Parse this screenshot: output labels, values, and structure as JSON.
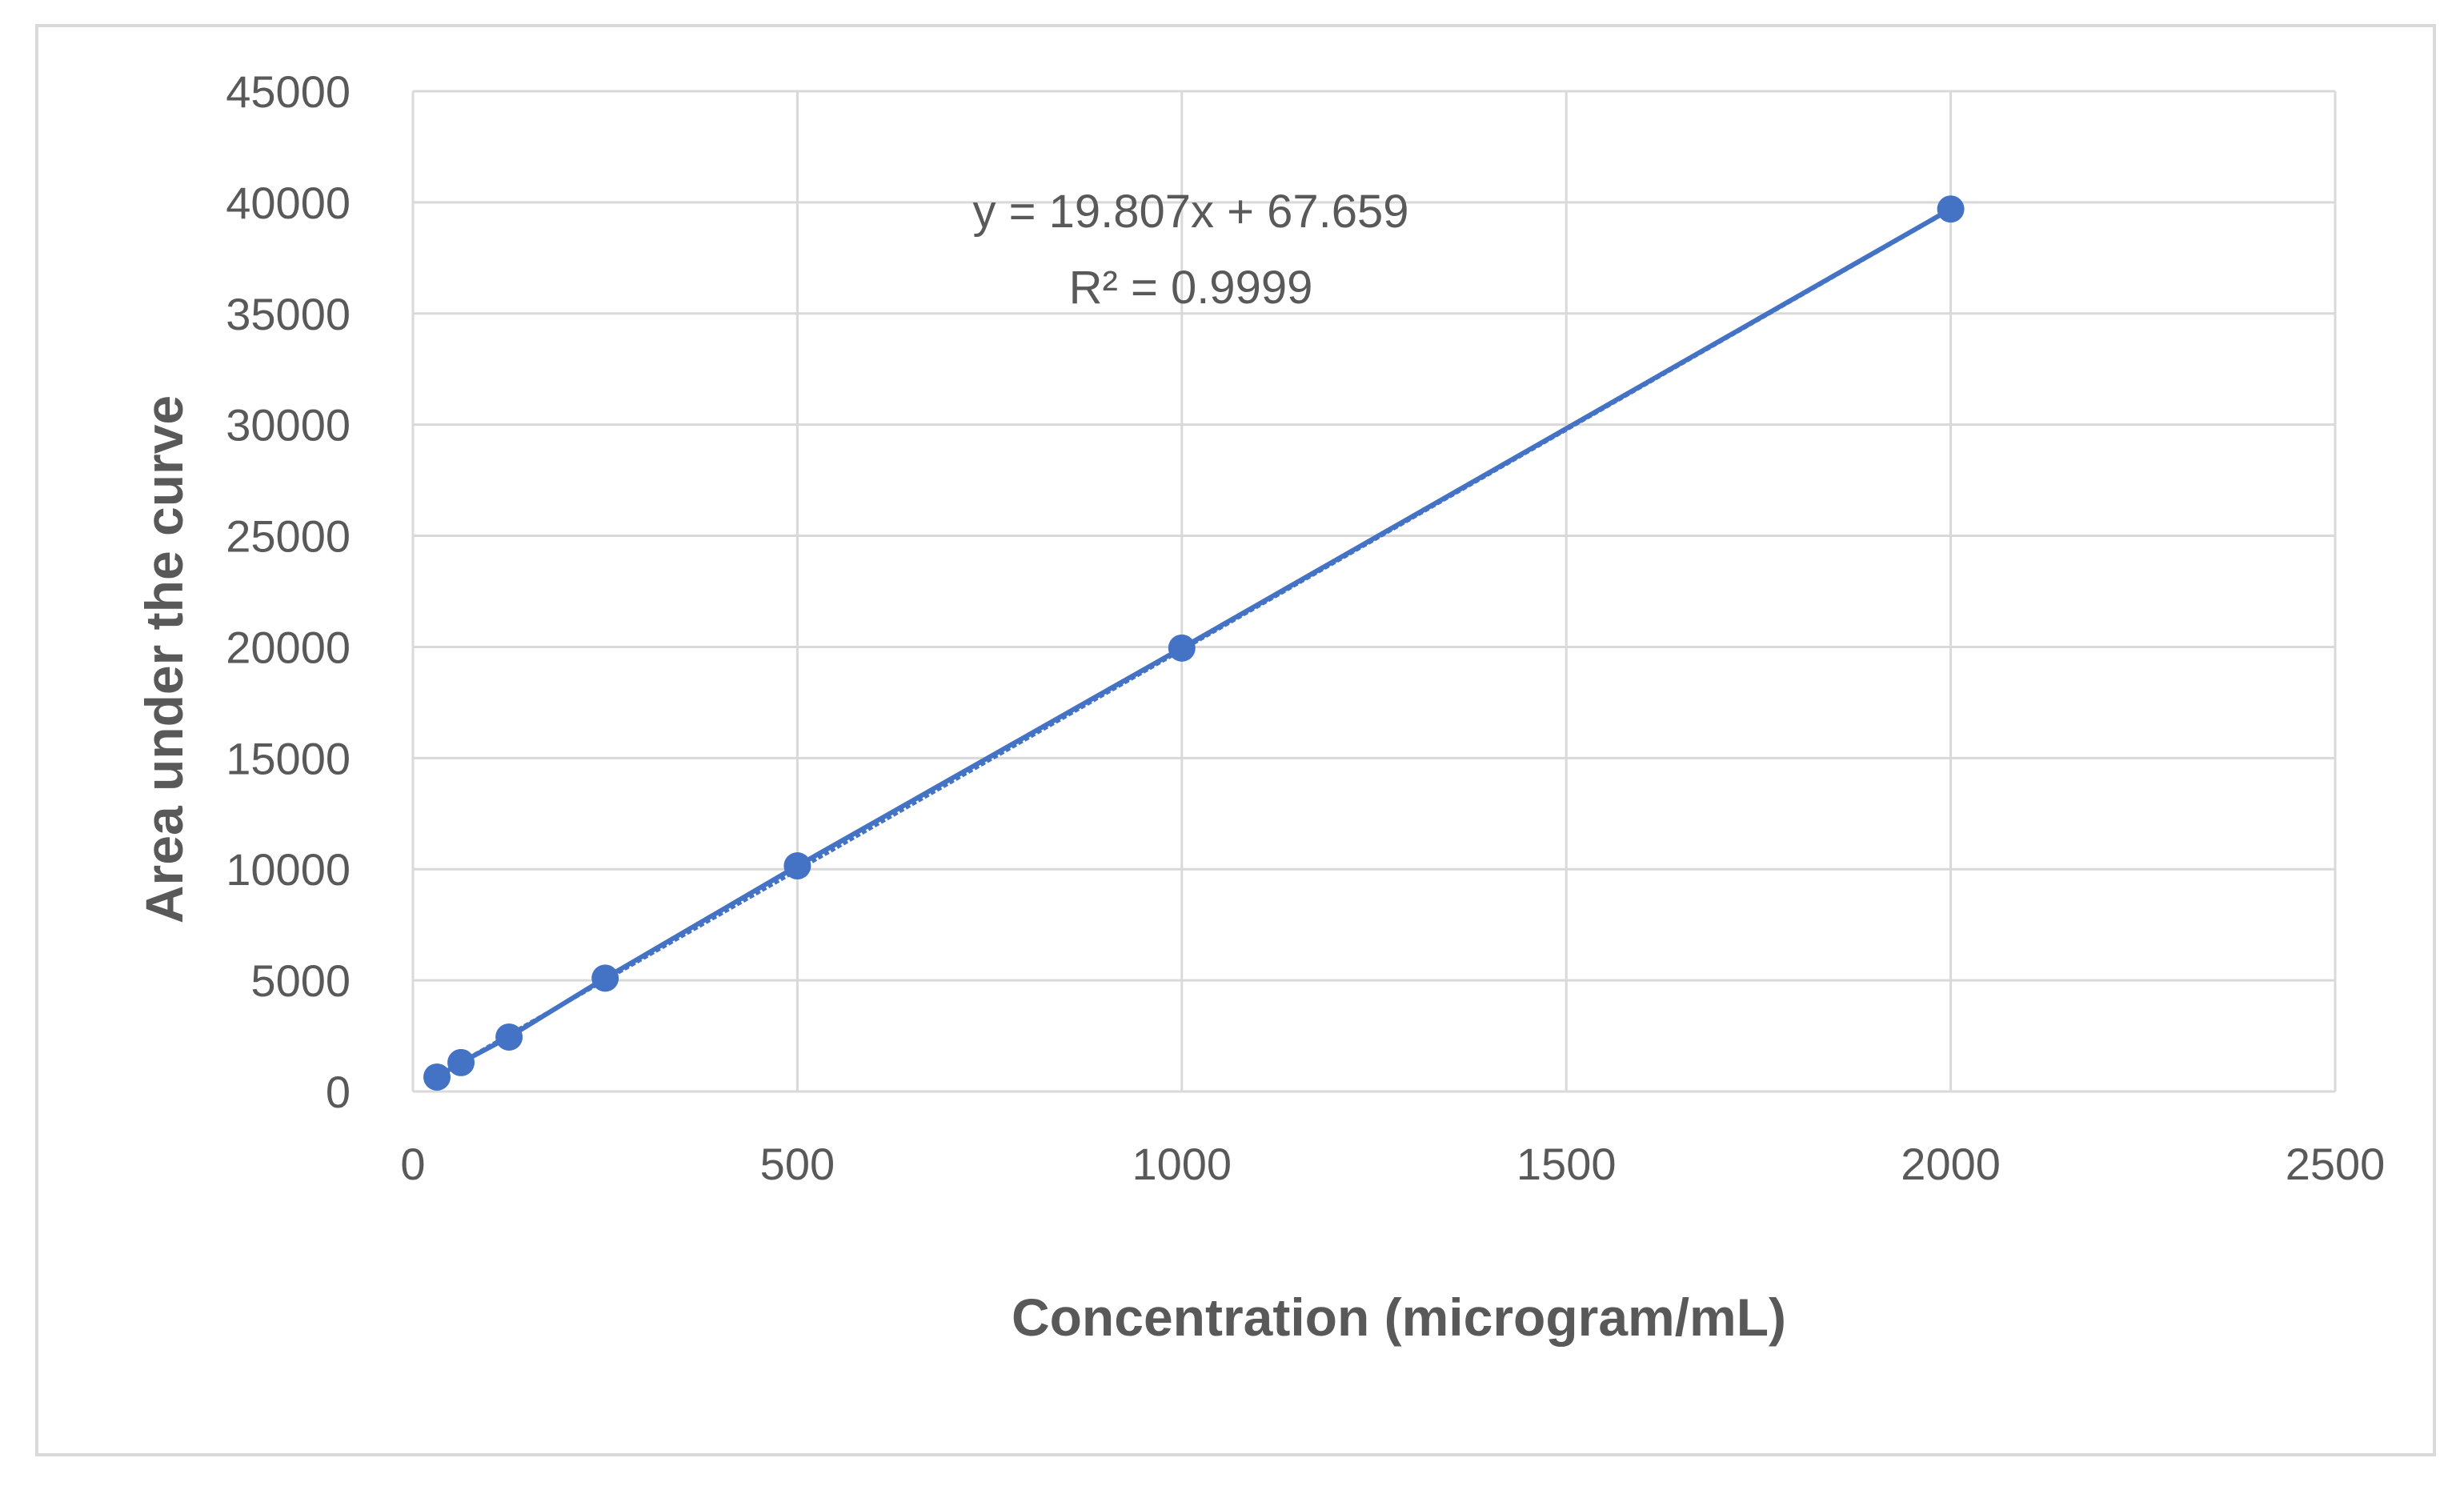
{
  "chart_data": {
    "type": "scatter",
    "title": "",
    "xlabel": "Concentration (microgram/mL)",
    "ylabel": "Area under the curve",
    "xlim": [
      0,
      2500
    ],
    "ylim": [
      0,
      45000
    ],
    "xticks": [
      "0",
      "500",
      "1000",
      "1500",
      "2000",
      "2500"
    ],
    "yticks": [
      "0",
      "5000",
      "10000",
      "15000",
      "20000",
      "25000",
      "30000",
      "35000",
      "40000",
      "45000"
    ],
    "grid": true,
    "series": [
      {
        "name": "Area under the curve",
        "color": "#4472c4",
        "x": [
          31.25,
          62.5,
          125,
          250,
          500,
          1000,
          2000
        ],
        "y": [
          650,
          1300,
          2450,
          5100,
          10150,
          19950,
          39700
        ]
      }
    ],
    "trendline": {
      "slope": 19.807,
      "intercept": 67.659,
      "x_range": [
        31.25,
        2000
      ],
      "equation": "y = 19.807x  + 67.659",
      "r2_label": "R² = 0.9999"
    }
  }
}
